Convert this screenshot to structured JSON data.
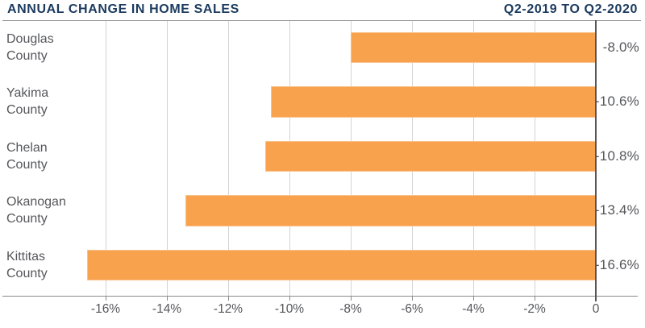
{
  "header": {
    "title": "ANNUAL CHANGE IN HOME SALES",
    "period": "Q2-2019 TO Q2-2020"
  },
  "chart_data": {
    "type": "bar",
    "orientation": "horizontal",
    "title": "ANNUAL CHANGE IN HOME SALES",
    "subtitle": "Q2-2019 TO Q2-2020",
    "categories": [
      "Douglas County",
      "Yakima County",
      "Chelan County",
      "Okanogan County",
      "Kittitas County"
    ],
    "values": [
      -8.0,
      -10.6,
      -10.8,
      -13.4,
      -16.6
    ],
    "rows": [
      {
        "label_lines": [
          "Douglas",
          "County"
        ],
        "value": -8.0,
        "value_label": "-8.0%"
      },
      {
        "label_lines": [
          "Yakima",
          "County"
        ],
        "value": -10.6,
        "value_label": "-10.6%"
      },
      {
        "label_lines": [
          "Chelan",
          "County"
        ],
        "value": -10.8,
        "value_label": "-10.8%"
      },
      {
        "label_lines": [
          "Okanogan",
          "County"
        ],
        "value": -13.4,
        "value_label": "-13.4%"
      },
      {
        "label_lines": [
          "Kittitas",
          "County"
        ],
        "value": -16.6,
        "value_label": "-16.6%"
      }
    ],
    "x_ticks": [
      {
        "value": -16,
        "label": "-16%"
      },
      {
        "value": -14,
        "label": "-14%"
      },
      {
        "value": -12,
        "label": "-12%"
      },
      {
        "value": -10,
        "label": "-10%"
      },
      {
        "value": -8,
        "label": "-8%"
      },
      {
        "value": -6,
        "label": "-6%"
      },
      {
        "value": -4,
        "label": "-4%"
      },
      {
        "value": -2,
        "label": "-2%"
      },
      {
        "value": 0,
        "label": "0"
      }
    ],
    "xlim": [
      -19.5,
      0
    ],
    "unit": "%",
    "grid": true,
    "legend": "none",
    "bar_color": "#F8A24E"
  },
  "colors": {
    "title_navy": "#1B3A5E",
    "bar_orange": "#F8A24E",
    "text_gray": "#56575B",
    "gridline_gray": "#D2D3D4",
    "zero_axis_dark": "#55565A"
  }
}
